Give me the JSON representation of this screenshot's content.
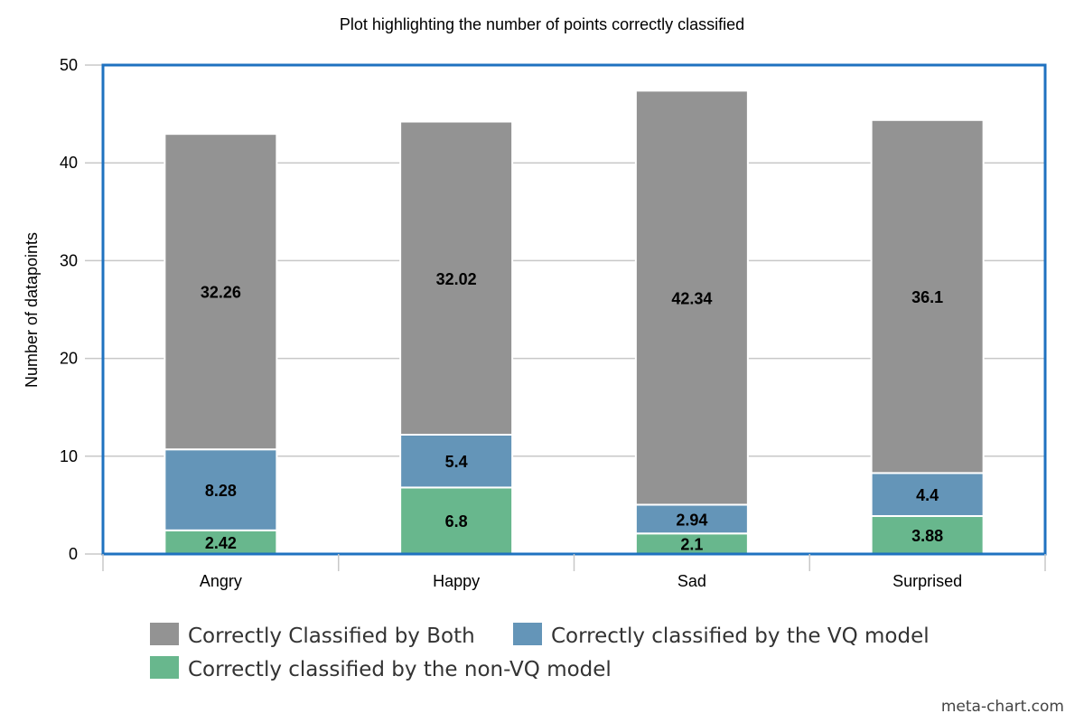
{
  "chart_data": {
    "type": "bar",
    "stacked": true,
    "title": "Plot highlighting the number of points correctly classified",
    "xlabel": "",
    "ylabel": "Number of datapoints",
    "ylim": [
      0,
      50
    ],
    "yticks": [
      "0",
      "10",
      "20",
      "30",
      "40",
      "50"
    ],
    "categories": [
      "Angry",
      "Happy",
      "Sad",
      "Surprised"
    ],
    "series": [
      {
        "name": "Correctly classified by the non-VQ model",
        "color": "#68b78d",
        "values": [
          2.42,
          6.8,
          2.1,
          3.88
        ]
      },
      {
        "name": "Correctly classified by the VQ model",
        "color": "#6495b8",
        "values": [
          8.28,
          5.4,
          2.94,
          4.4
        ]
      },
      {
        "name": "Correctly Classified by Both",
        "color": "#939393",
        "values": [
          32.26,
          32.02,
          42.34,
          36.1
        ]
      }
    ],
    "data_labels": [
      [
        "2.42",
        "6.8",
        "2.1",
        "3.88"
      ],
      [
        "8.28",
        "5.4",
        "2.94",
        "4.4"
      ],
      [
        "32.26",
        "32.02",
        "42.34",
        "36.1"
      ]
    ],
    "grid": true,
    "legend_position": "bottom",
    "legend_entries": [
      "Correctly Classified by Both",
      "Correctly classified by the VQ model",
      "Correctly classified by the non-VQ model"
    ],
    "frame_color": "#1f72c0"
  },
  "credit": "meta-chart.com"
}
